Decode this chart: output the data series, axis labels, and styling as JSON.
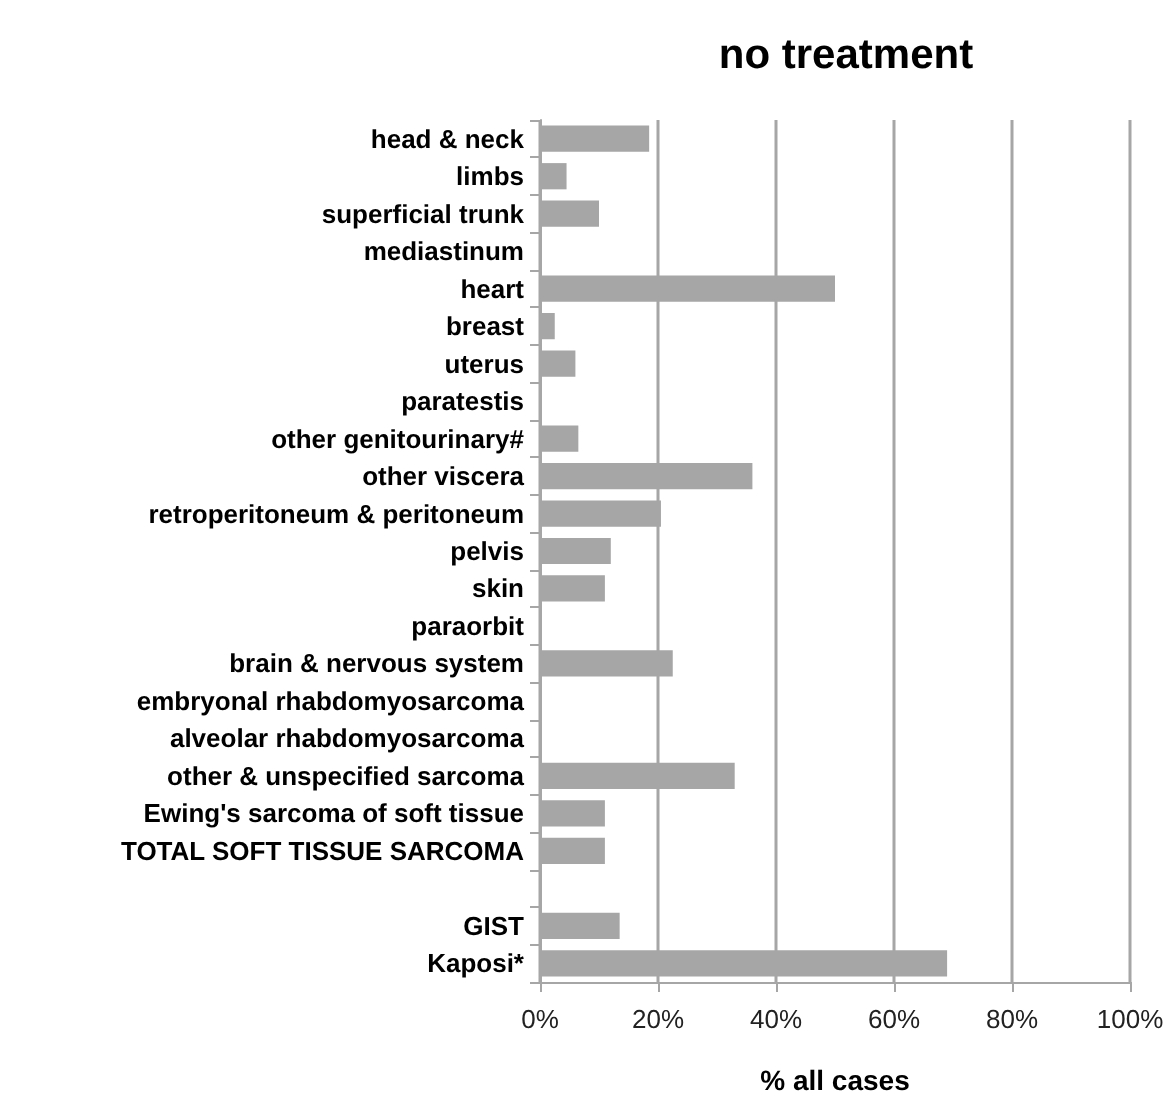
{
  "chart_data": {
    "type": "bar",
    "orientation": "horizontal",
    "title": "no treatment",
    "xlabel": "% all cases",
    "categories": [
      "head & neck",
      "limbs",
      "superficial trunk",
      "mediastinum",
      "heart",
      "breast",
      "uterus",
      "paratestis",
      "other genitourinary#",
      "other viscera",
      "retroperitoneum & peritoneum",
      "pelvis",
      "skin",
      "paraorbit",
      "brain & nervous system",
      "embryonal rhabdomyosarcoma",
      "alveolar rhabdomyosarcoma",
      "other & unspecified sarcoma",
      "Ewing's sarcoma of soft tissue",
      "TOTAL SOFT TISSUE SARCOMA",
      null,
      "GIST",
      "Kaposi*"
    ],
    "values": [
      18.5,
      4.5,
      10,
      0,
      50,
      2.5,
      6,
      0,
      6.5,
      36,
      20.5,
      12,
      11,
      0,
      22.5,
      0,
      0,
      33,
      11,
      11,
      null,
      13.5,
      69
    ],
    "color": "#a6a6a6",
    "xlim": [
      0,
      100
    ],
    "xticks": [
      {
        "value": 0,
        "label": "0%"
      },
      {
        "value": 20,
        "label": "20%"
      },
      {
        "value": 40,
        "label": "40%"
      },
      {
        "value": 60,
        "label": "60%"
      },
      {
        "value": 80,
        "label": "80%"
      },
      {
        "value": 100,
        "label": "100%"
      }
    ],
    "grid": "x"
  }
}
